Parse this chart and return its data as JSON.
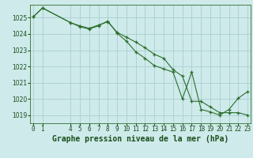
{
  "title": "Graphe pression niveau de la mer (hPa)",
  "background_color": "#ceeaea",
  "grid_color": "#aacfcf",
  "line_color": "#2d6e2d",
  "marker_color": "#2d6e2d",
  "x_values": [
    0,
    1,
    4,
    5,
    6,
    7,
    8,
    9,
    10,
    11,
    12,
    13,
    14,
    15,
    16,
    17,
    18,
    19,
    20,
    21,
    22,
    23
  ],
  "y_values": [
    1025.05,
    1025.6,
    1024.7,
    1024.5,
    1024.35,
    1024.55,
    1024.75,
    1024.1,
    1023.8,
    1023.5,
    1023.15,
    1022.75,
    1022.5,
    1021.8,
    1021.4,
    1019.85,
    1019.85,
    1019.5,
    1019.15,
    1019.15,
    1019.15,
    1019.0
  ],
  "y2_values": [
    1025.05,
    1025.6,
    1024.7,
    1024.45,
    1024.3,
    1024.5,
    1024.8,
    1024.05,
    1023.55,
    1022.9,
    1022.5,
    1022.05,
    1021.85,
    1021.65,
    1020.0,
    1021.65,
    1019.35,
    1019.2,
    1019.0,
    1019.35,
    1020.05,
    1020.45
  ],
  "ylim": [
    1018.5,
    1025.8
  ],
  "yticks": [
    1019,
    1020,
    1021,
    1022,
    1023,
    1024,
    1025
  ],
  "xticks": [
    0,
    1,
    4,
    5,
    6,
    7,
    8,
    9,
    10,
    11,
    12,
    13,
    14,
    15,
    16,
    17,
    18,
    19,
    20,
    21,
    22,
    23
  ],
  "xlim": [
    -0.3,
    23.3
  ],
  "title_fontsize": 7,
  "tick_fontsize": 5.5
}
